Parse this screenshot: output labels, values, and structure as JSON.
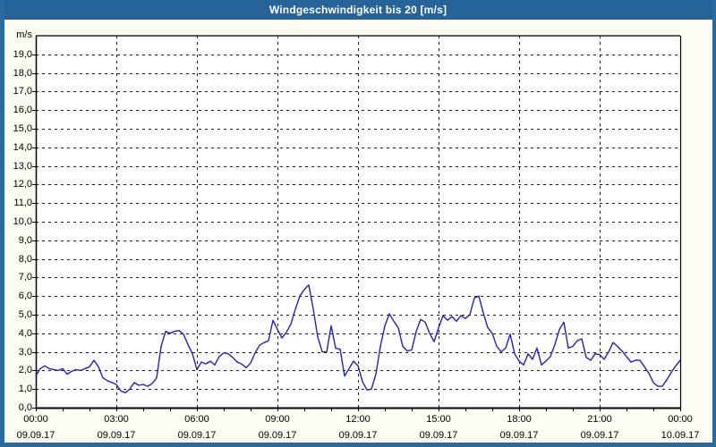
{
  "window": {
    "title": "Windgeschwindigkeit bis 20 [m/s]"
  },
  "colors": {
    "titlebar": "#256399",
    "window_border": "#2b6a9e",
    "background": "#fcfcf5",
    "plot_background": "#ffffff",
    "grid": "#1a1a1a",
    "axis": "#000000",
    "line": "#2323ad",
    "text": "#000000"
  },
  "chart_data": {
    "type": "line",
    "title": "Windgeschwindigkeit bis 20 [m/s]",
    "ylabel": "m/s",
    "xlabel": "",
    "ylim": [
      0,
      20
    ],
    "xlim_hours": [
      0,
      24
    ],
    "grid": "dashed",
    "legend": "none",
    "y_tick_labels": [
      "0,0",
      "1,0",
      "2,0",
      "3,0",
      "4,0",
      "5,0",
      "6,0",
      "7,0",
      "8,0",
      "9,0",
      "10,0",
      "11,0",
      "12,0",
      "13,0",
      "14,0",
      "15,0",
      "16,0",
      "17,0",
      "18,0",
      "19,0"
    ],
    "x_ticks": [
      {
        "hour": 0,
        "time": "00:00",
        "date": "09.09.17"
      },
      {
        "hour": 3,
        "time": "03:00",
        "date": "09.09.17"
      },
      {
        "hour": 6,
        "time": "06:00",
        "date": "09.09.17"
      },
      {
        "hour": 9,
        "time": "09:00",
        "date": "09.09.17"
      },
      {
        "hour": 12,
        "time": "12:00",
        "date": "09.09.17"
      },
      {
        "hour": 15,
        "time": "15:00",
        "date": "09.09.17"
      },
      {
        "hour": 18,
        "time": "18:00",
        "date": "09.09.17"
      },
      {
        "hour": 21,
        "time": "21:00",
        "date": "09.09.17"
      },
      {
        "hour": 24,
        "time": "00:00",
        "date": "10.09.17"
      }
    ],
    "minor_x_tick_every_hours": 1,
    "major_gridline_every_hours": 3,
    "series": [
      {
        "name": "Windgeschwindigkeit",
        "unit": "m/s",
        "color": "#2323ad",
        "start_hour": 0,
        "interval_minutes": 10,
        "values": [
          1.7,
          2.1,
          2.25,
          2.1,
          2.05,
          2.0,
          2.1,
          1.8,
          1.95,
          2.05,
          2.0,
          2.1,
          2.2,
          2.55,
          2.2,
          1.6,
          1.45,
          1.35,
          1.25,
          0.9,
          0.8,
          1.0,
          1.35,
          1.2,
          1.25,
          1.15,
          1.3,
          1.6,
          3.3,
          4.1,
          4.0,
          4.1,
          4.15,
          3.95,
          3.4,
          2.9,
          2.05,
          2.45,
          2.35,
          2.5,
          2.3,
          2.75,
          2.95,
          2.9,
          2.7,
          2.45,
          2.35,
          2.15,
          2.4,
          2.95,
          3.35,
          3.5,
          3.6,
          4.7,
          4.2,
          3.75,
          4.05,
          4.5,
          5.3,
          6.0,
          6.35,
          6.6,
          5.3,
          3.8,
          3.0,
          3.0,
          4.4,
          3.2,
          3.15,
          1.7,
          2.1,
          2.5,
          2.25,
          1.4,
          0.95,
          1.0,
          1.8,
          3.3,
          4.4,
          5.05,
          4.65,
          4.3,
          3.3,
          3.05,
          3.1,
          4.1,
          4.75,
          4.6,
          4.0,
          3.55,
          4.3,
          4.95,
          4.7,
          4.9,
          4.65,
          4.95,
          4.8,
          5.0,
          5.9,
          6.0,
          5.1,
          4.3,
          4.0,
          3.3,
          3.0,
          3.2,
          3.95,
          2.9,
          2.5,
          2.3,
          2.9,
          2.6,
          3.2,
          2.3,
          2.5,
          2.75,
          3.4,
          4.2,
          4.6,
          3.2,
          3.3,
          3.6,
          3.7,
          2.7,
          2.55,
          2.9,
          2.85,
          2.6,
          3.0,
          3.5,
          3.3,
          3.05,
          2.75,
          2.45,
          2.55,
          2.55,
          2.2,
          1.85,
          1.35,
          1.15,
          1.15,
          1.5,
          1.9,
          2.25,
          2.55
        ]
      }
    ]
  }
}
